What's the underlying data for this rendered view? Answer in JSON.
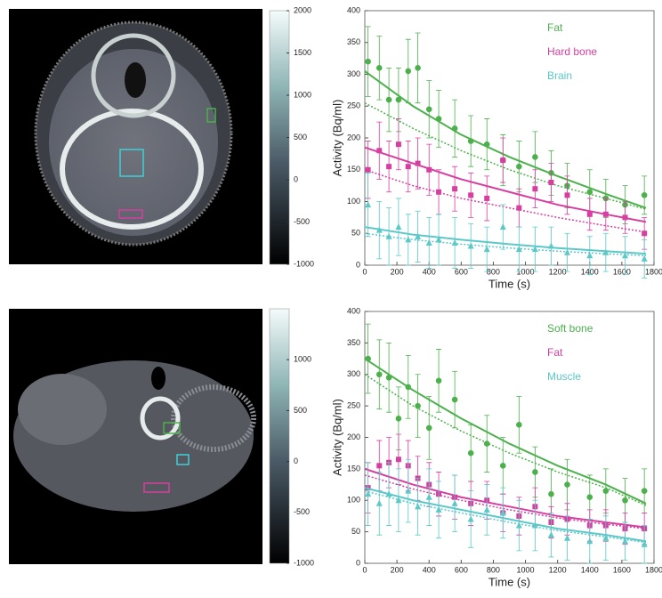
{
  "chart_data": [
    {
      "type": "colorbar",
      "ylim": [
        -1000,
        2000
      ],
      "yticks": [
        -1000,
        -500,
        0,
        500,
        1000,
        1500,
        2000
      ]
    },
    {
      "type": "scatter",
      "y_label": "Activity (Bq/ml)",
      "x_label": "Time (s)",
      "xlim": [
        0,
        1800
      ],
      "xticks": [
        0,
        200,
        400,
        600,
        800,
        1000,
        1200,
        1400,
        1600,
        1800
      ],
      "ylim": [
        0,
        400
      ],
      "yticks": [
        0,
        50,
        100,
        150,
        200,
        250,
        300,
        350,
        400
      ],
      "legend": "upper right",
      "x": [
        20,
        90,
        150,
        210,
        270,
        330,
        400,
        460,
        560,
        660,
        760,
        860,
        960,
        1060,
        1160,
        1260,
        1400,
        1500,
        1620,
        1740
      ],
      "fit_x": [
        0,
        300,
        600,
        900,
        1200,
        1500,
        1750
      ],
      "series": [
        {
          "name": "Fat",
          "color": "#4cb04c",
          "marker": "circle",
          "values": [
            320,
            310,
            260,
            260,
            305,
            310,
            245,
            230,
            215,
            195,
            190,
            165,
            155,
            170,
            145,
            125,
            115,
            105,
            95,
            110
          ],
          "errors": [
            55,
            50,
            50,
            50,
            50,
            55,
            45,
            45,
            45,
            40,
            40,
            40,
            40,
            40,
            35,
            35,
            35,
            30,
            30,
            30
          ],
          "fit": [
            305,
            250,
            205,
            170,
            140,
            112,
            90
          ],
          "fit_dotted": [
            255,
            215,
            180,
            150,
            125,
            105,
            88
          ]
        },
        {
          "name": "Hard bone",
          "color": "#d63fa0",
          "marker": "square",
          "values": [
            150,
            180,
            155,
            190,
            155,
            160,
            150,
            115,
            120,
            110,
            105,
            165,
            90,
            120,
            130,
            110,
            80,
            80,
            75,
            50
          ],
          "errors": [
            45,
            45,
            40,
            40,
            40,
            40,
            40,
            35,
            35,
            35,
            35,
            35,
            30,
            30,
            30,
            30,
            25,
            25,
            25,
            25
          ],
          "fit": [
            185,
            160,
            135,
            115,
            95,
            80,
            68
          ],
          "fit_dotted": [
            150,
            125,
            105,
            90,
            75,
            62,
            52
          ]
        },
        {
          "name": "Brain",
          "color": "#5cc8c8",
          "marker": "triangle",
          "values": [
            95,
            55,
            45,
            60,
            40,
            45,
            35,
            40,
            35,
            30,
            25,
            60,
            25,
            25,
            30,
            20,
            15,
            20,
            15,
            10
          ],
          "errors": [
            50,
            45,
            45,
            45,
            40,
            40,
            40,
            40,
            40,
            35,
            35,
            35,
            35,
            35,
            30,
            30,
            30,
            30,
            30,
            30
          ],
          "fit": [
            60,
            48,
            40,
            33,
            27,
            22,
            18
          ],
          "fit_dotted": [
            50,
            40,
            33,
            27,
            22,
            18,
            15
          ]
        }
      ]
    },
    {
      "type": "colorbar",
      "ylim": [
        -1000,
        1500
      ],
      "yticks": [
        -1000,
        -500,
        0,
        500,
        1000
      ]
    },
    {
      "type": "scatter",
      "y_label": "Activity (Bq/ml)",
      "x_label": "Time (s)",
      "xlim": [
        0,
        1800
      ],
      "xticks": [
        0,
        200,
        400,
        600,
        800,
        1000,
        1200,
        1400,
        1600,
        1800
      ],
      "ylim": [
        0,
        400
      ],
      "yticks": [
        0,
        50,
        100,
        150,
        200,
        250,
        300,
        350,
        400
      ],
      "legend": "upper right",
      "x": [
        20,
        90,
        150,
        210,
        270,
        330,
        400,
        460,
        560,
        660,
        760,
        860,
        960,
        1060,
        1160,
        1260,
        1400,
        1500,
        1620,
        1740
      ],
      "fit_x": [
        0,
        300,
        600,
        900,
        1200,
        1500,
        1750
      ],
      "series": [
        {
          "name": "Soft bone",
          "color": "#4cb04c",
          "marker": "circle",
          "values": [
            325,
            300,
            295,
            230,
            280,
            250,
            215,
            290,
            260,
            175,
            190,
            155,
            220,
            145,
            110,
            125,
            105,
            115,
            100,
            115
          ],
          "errors": [
            55,
            55,
            55,
            50,
            50,
            50,
            50,
            50,
            45,
            45,
            45,
            45,
            45,
            40,
            40,
            40,
            35,
            35,
            35,
            35
          ],
          "fit": [
            325,
            275,
            230,
            190,
            155,
            125,
            95
          ],
          "fit_dotted": [
            300,
            250,
            210,
            175,
            145,
            120,
            92
          ]
        },
        {
          "name": "Fat",
          "color": "#d63fa0",
          "marker": "square",
          "values": [
            120,
            155,
            160,
            165,
            155,
            135,
            125,
            110,
            105,
            95,
            100,
            80,
            75,
            90,
            65,
            70,
            60,
            60,
            55,
            55
          ],
          "errors": [
            40,
            40,
            40,
            40,
            40,
            35,
            35,
            35,
            35,
            35,
            30,
            30,
            30,
            30,
            25,
            25,
            25,
            25,
            25,
            25
          ],
          "fit": [
            150,
            125,
            105,
            90,
            75,
            65,
            57
          ],
          "fit_dotted": [
            140,
            118,
            100,
            85,
            72,
            62,
            55
          ]
        },
        {
          "name": "Muscle",
          "color": "#5cc8c8",
          "marker": "triangle",
          "values": [
            110,
            95,
            110,
            100,
            115,
            90,
            105,
            85,
            95,
            70,
            85,
            80,
            60,
            60,
            45,
            40,
            35,
            40,
            35,
            30
          ],
          "errors": [
            50,
            50,
            50,
            50,
            50,
            45,
            45,
            45,
            45,
            45,
            40,
            40,
            40,
            40,
            35,
            35,
            35,
            35,
            30,
            30
          ],
          "fit": [
            120,
            100,
            85,
            70,
            55,
            45,
            35
          ],
          "fit_dotted": [
            115,
            95,
            80,
            65,
            52,
            42,
            33
          ]
        }
      ]
    }
  ]
}
